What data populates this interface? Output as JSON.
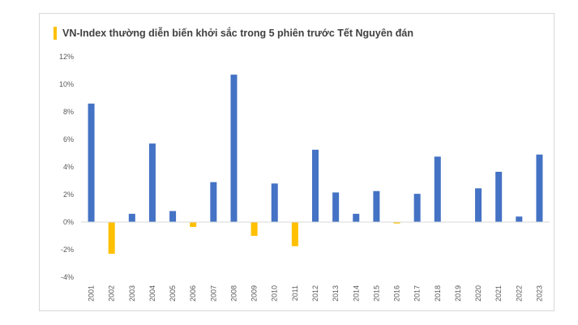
{
  "chart_data": {
    "type": "bar",
    "title": "VN-Index thường diễn biến khởi sắc trong 5 phiên trước Tết Nguyên đán",
    "xlabel": "",
    "ylabel": "",
    "ylim": [
      -4,
      12
    ],
    "yticks": [
      "12%",
      "10%",
      "8%",
      "6%",
      "4%",
      "2%",
      "0%",
      "-2%",
      "-4%"
    ],
    "ytick_values": [
      12,
      10,
      8,
      6,
      4,
      2,
      0,
      -2,
      -4
    ],
    "grid": false,
    "legend": "none",
    "categories": [
      "2001",
      "2002",
      "2003",
      "2004",
      "2005",
      "2006",
      "2007",
      "2008",
      "2009",
      "2010",
      "2011",
      "2012",
      "2013",
      "2014",
      "2015",
      "2016",
      "2017",
      "2018",
      "2019",
      "2020",
      "2021",
      "2022",
      "2023"
    ],
    "values": [
      8.6,
      -2.3,
      0.6,
      5.7,
      0.8,
      -0.35,
      2.9,
      10.7,
      -1.0,
      2.8,
      -1.75,
      5.25,
      2.15,
      0.6,
      2.25,
      -0.1,
      2.05,
      4.75,
      0,
      2.45,
      3.65,
      0.4,
      4.9
    ],
    "colors": {
      "positive": "#4472C4",
      "negative": "#FFC000",
      "accent": "#FFC000",
      "axis": "#d9d9d9"
    }
  }
}
